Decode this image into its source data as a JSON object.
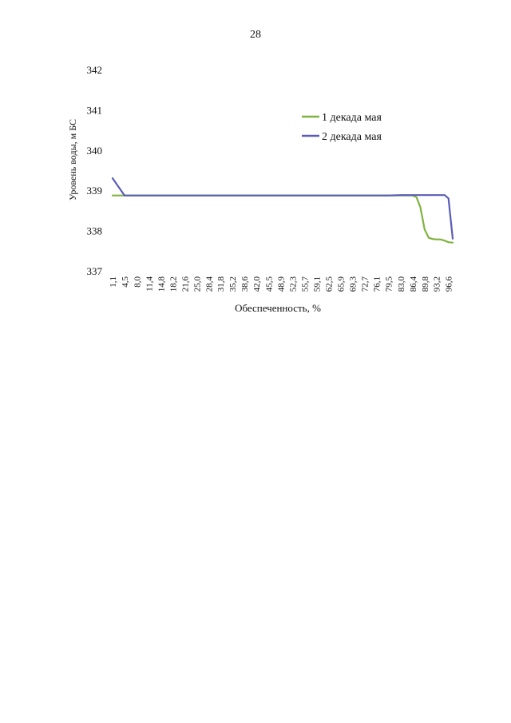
{
  "page": {
    "number": "28"
  },
  "chart_data": {
    "type": "line",
    "title": "",
    "xlabel": "Обеспеченность, %",
    "ylabel": "Уровень воды, м БС",
    "ylim": [
      337,
      342
    ],
    "yticks": [
      "337",
      "338",
      "339",
      "340",
      "341",
      "342"
    ],
    "grid": false,
    "legend_position": "top-right",
    "x": [
      1.1,
      4.5,
      8.0,
      11.4,
      14.8,
      18.2,
      21.6,
      25.0,
      28.4,
      31.8,
      35.2,
      38.6,
      42.0,
      45.5,
      48.9,
      52.3,
      55.7,
      59.1,
      62.5,
      65.9,
      69.3,
      72.7,
      76.1,
      79.5,
      83.0,
      86.4,
      87.5,
      88.6,
      89.8,
      91.0,
      92.1,
      93.2,
      94.3,
      95.5,
      96.6,
      97.8
    ],
    "x_tick_labels": [
      "1,1",
      "4,5",
      "8,0",
      "11,4",
      "14,8",
      "18,2",
      "21,6",
      "25,0",
      "28,4",
      "31,8",
      "35,2",
      "38,6",
      "42,0",
      "45,5",
      "48,9",
      "52,3",
      "55,7",
      "59,1",
      "62,5",
      "65,9",
      "69,3",
      "72,7",
      "76,1",
      "79,5",
      "83,0",
      "86,4",
      "89,8",
      "93,2",
      "96,6"
    ],
    "series": [
      {
        "name": "1 декада мая",
        "color": "#7fb33f",
        "values": [
          338.89,
          338.89,
          338.89,
          338.89,
          338.89,
          338.89,
          338.89,
          338.89,
          338.89,
          338.89,
          338.89,
          338.89,
          338.89,
          338.89,
          338.89,
          338.89,
          338.89,
          338.89,
          338.89,
          338.89,
          338.89,
          338.89,
          338.89,
          338.89,
          338.89,
          338.89,
          338.85,
          338.6,
          338.05,
          337.84,
          337.81,
          337.8,
          337.8,
          337.77,
          337.73,
          337.72
        ]
      },
      {
        "name": "2 декада мая",
        "color": "#5a5cb8",
        "values": [
          339.32,
          338.89,
          338.89,
          338.89,
          338.89,
          338.89,
          338.89,
          338.89,
          338.89,
          338.89,
          338.89,
          338.89,
          338.89,
          338.89,
          338.89,
          338.89,
          338.89,
          338.89,
          338.89,
          338.89,
          338.89,
          338.89,
          338.89,
          338.89,
          338.9,
          338.9,
          338.9,
          338.9,
          338.9,
          338.9,
          338.9,
          338.9,
          338.9,
          338.9,
          338.82,
          337.82
        ]
      }
    ]
  }
}
